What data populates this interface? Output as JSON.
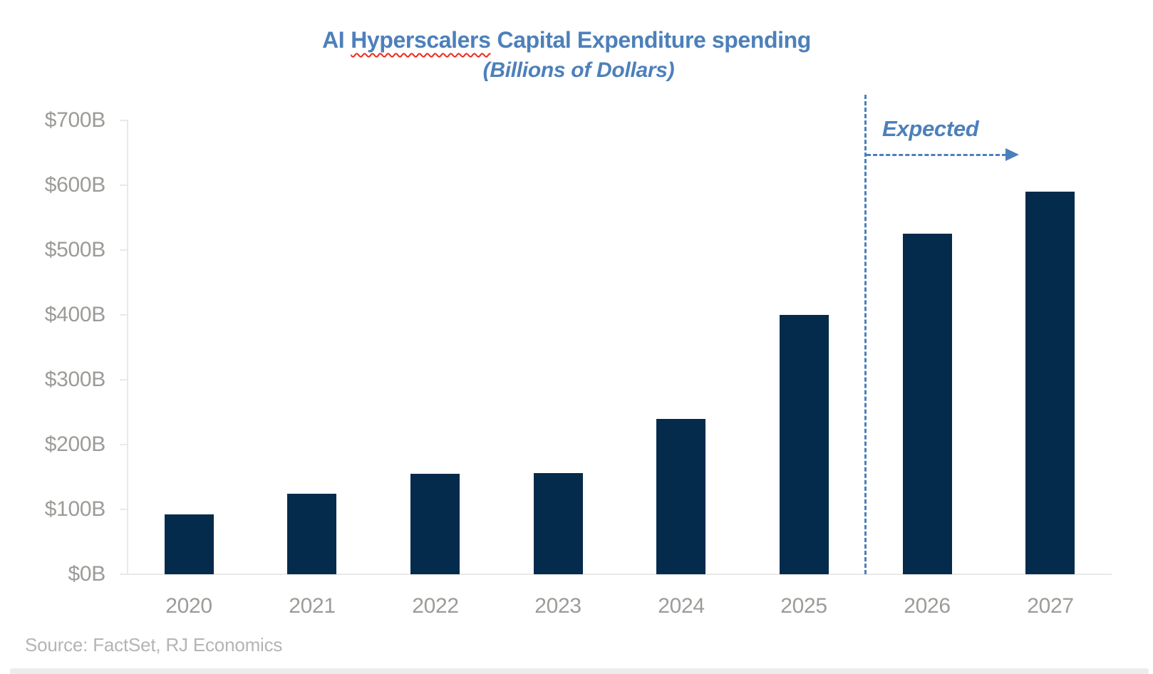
{
  "title": {
    "prefix": "AI",
    "misspelled_word": "Hyperscalers",
    "suffix": "Capital Expenditure spending"
  },
  "subtitle": "(Billions of Dollars)",
  "annotation": {
    "label": "Expected",
    "applies_to_categories": [
      "2026",
      "2027"
    ]
  },
  "source": "Source: FactSet, RJ Economics",
  "colors": {
    "bar": "#052b4c",
    "accent_blue": "#4c80ba",
    "axis_label_gray": "#9b9b97",
    "source_gray": "#b4b4b2",
    "axis_line_gray": "#e9e9e7",
    "squiggle_red": "#ee2a1c",
    "background": "#ffffff"
  },
  "chart_data": {
    "type": "bar",
    "title": "AI Hyperscalers Capital Expenditure spending",
    "subtitle": "(Billions of Dollars)",
    "xlabel": "",
    "ylabel": "",
    "categories": [
      "2020",
      "2021",
      "2022",
      "2023",
      "2024",
      "2025",
      "2026",
      "2027"
    ],
    "values": [
      92,
      124,
      155,
      156,
      240,
      400,
      525,
      590
    ],
    "units": "billions of dollars",
    "ylim": [
      0,
      700
    ],
    "ytick_values": [
      0,
      100,
      200,
      300,
      400,
      500,
      600,
      700
    ],
    "ytick_labels": [
      "$0B",
      "$100B",
      "$200B",
      "$300B",
      "$400B",
      "$500B",
      "$600B",
      "$700B"
    ],
    "grid": false,
    "legend": false,
    "annotation_text": "Expected",
    "expected_divider_between": [
      "2025",
      "2026"
    ]
  }
}
